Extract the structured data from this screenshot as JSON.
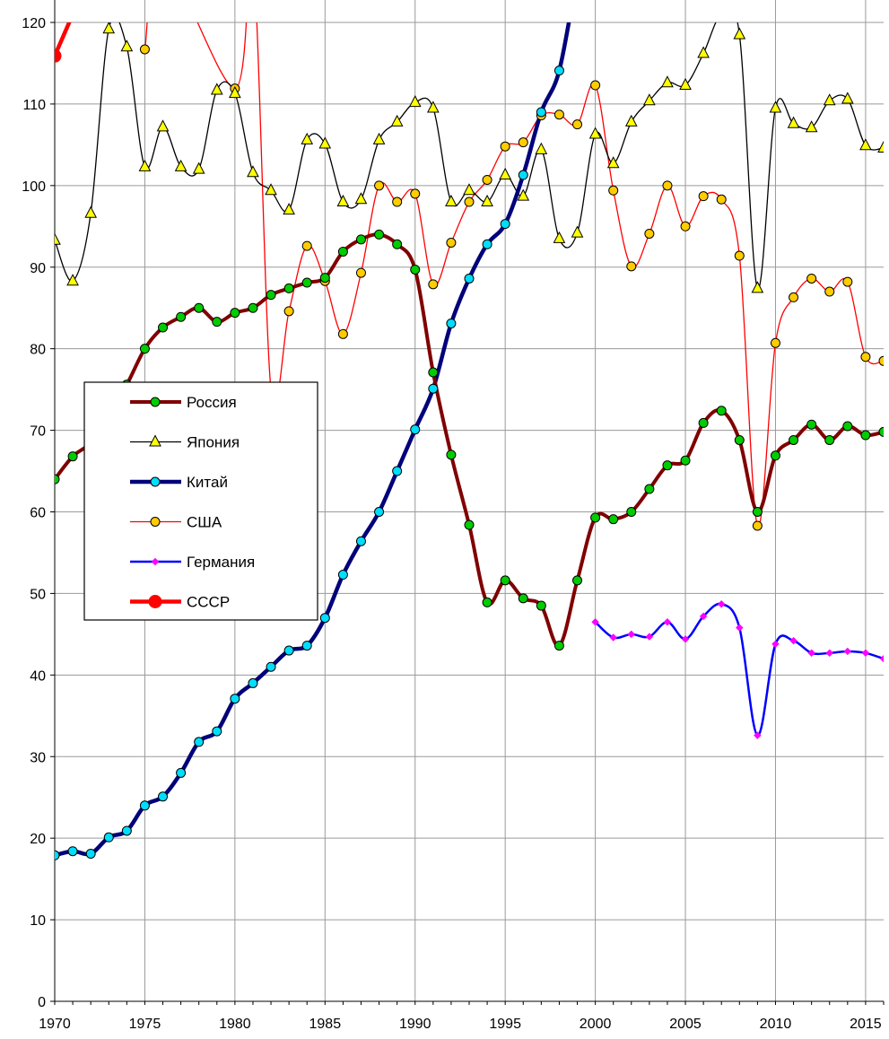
{
  "chart_data": {
    "type": "line",
    "title": "",
    "xlabel": "",
    "ylabel": "",
    "xlim": [
      1970,
      2016
    ],
    "ylim": [
      0,
      120
    ],
    "grid": true,
    "legend_position": "left-middle",
    "x_ticks": [
      "1970",
      "1975",
      "1980",
      "1985",
      "1990",
      "1995",
      "2000",
      "2005",
      "2010",
      "2015"
    ],
    "y_ticks": [
      "0",
      "10",
      "20",
      "30",
      "40",
      "50",
      "60",
      "70",
      "80",
      "90",
      "100",
      "110",
      "120"
    ],
    "series": [
      {
        "name": "Россия",
        "color": "#800000",
        "marker": "circle",
        "marker_fill": "#00cc00",
        "points": [
          [
            1970,
            64.0
          ],
          [
            1971,
            66.8
          ],
          [
            1972,
            68.5
          ],
          [
            1973,
            72.0
          ],
          [
            1974,
            75.6
          ],
          [
            1975,
            80.0
          ],
          [
            1976,
            82.6
          ],
          [
            1977,
            83.9
          ],
          [
            1978,
            85.0
          ],
          [
            1979,
            83.3
          ],
          [
            1980,
            84.4
          ],
          [
            1981,
            85.0
          ],
          [
            1982,
            86.6
          ],
          [
            1983,
            87.4
          ],
          [
            1984,
            88.1
          ],
          [
            1985,
            88.7
          ],
          [
            1986,
            91.9
          ],
          [
            1987,
            93.4
          ],
          [
            1988,
            94.0
          ],
          [
            1989,
            92.8
          ],
          [
            1990,
            89.7
          ],
          [
            1991,
            77.1
          ],
          [
            1992,
            67.0
          ],
          [
            1993,
            58.4
          ],
          [
            1994,
            48.9
          ],
          [
            1995,
            51.6
          ],
          [
            1996,
            49.4
          ],
          [
            1997,
            48.5
          ],
          [
            1998,
            43.6
          ],
          [
            1999,
            51.6
          ],
          [
            2000,
            59.3
          ],
          [
            2001,
            59.1
          ],
          [
            2002,
            60.0
          ],
          [
            2003,
            62.8
          ],
          [
            2004,
            65.7
          ],
          [
            2005,
            66.3
          ],
          [
            2006,
            70.9
          ],
          [
            2007,
            72.4
          ],
          [
            2008,
            68.8
          ],
          [
            2009,
            60.0
          ],
          [
            2010,
            66.9
          ],
          [
            2011,
            68.8
          ],
          [
            2012,
            70.7
          ],
          [
            2013,
            68.8
          ],
          [
            2014,
            70.5
          ],
          [
            2015,
            69.4
          ],
          [
            2016,
            69.8
          ]
        ]
      },
      {
        "name": "Япония",
        "color": "#000000",
        "marker": "triangle",
        "marker_fill": "#ffff00",
        "points": [
          [
            1970,
            93.3
          ],
          [
            1971,
            88.3
          ],
          [
            1972,
            96.6
          ],
          [
            1973,
            119.2
          ],
          [
            1974,
            117.0
          ],
          [
            1975,
            102.3
          ],
          [
            1976,
            107.2
          ],
          [
            1977,
            102.3
          ],
          [
            1978,
            102.0
          ],
          [
            1979,
            111.7
          ],
          [
            1980,
            111.3
          ],
          [
            1981,
            101.6
          ],
          [
            1982,
            99.4
          ],
          [
            1983,
            97.0
          ],
          [
            1984,
            105.6
          ],
          [
            1985,
            105.1
          ],
          [
            1986,
            98.0
          ],
          [
            1987,
            98.3
          ],
          [
            1988,
            105.6
          ],
          [
            1989,
            107.8
          ],
          [
            1990,
            110.2
          ],
          [
            1991,
            109.5
          ],
          [
            1992,
            98.0
          ],
          [
            1993,
            99.4
          ],
          [
            1994,
            98.0
          ],
          [
            1995,
            101.3
          ],
          [
            1996,
            98.7
          ],
          [
            1997,
            104.4
          ],
          [
            1998,
            93.5
          ],
          [
            1999,
            94.2
          ],
          [
            2000,
            106.3
          ],
          [
            2001,
            102.7
          ],
          [
            2002,
            107.8
          ],
          [
            2003,
            110.4
          ],
          [
            2004,
            112.6
          ],
          [
            2005,
            112.3
          ],
          [
            2006,
            116.2
          ],
          [
            2007,
            121.0
          ],
          [
            2008,
            118.5
          ],
          [
            2009,
            87.4
          ],
          [
            2010,
            109.5
          ],
          [
            2011,
            107.6
          ],
          [
            2012,
            107.1
          ],
          [
            2013,
            110.4
          ],
          [
            2014,
            110.6
          ],
          [
            2015,
            104.9
          ],
          [
            2016,
            104.6
          ]
        ]
      },
      {
        "name": "Китай",
        "color": "#00007a",
        "marker": "circle",
        "marker_fill": "#00ddff",
        "points": [
          [
            1970,
            17.9
          ],
          [
            1971,
            18.4
          ],
          [
            1972,
            18.1
          ],
          [
            1973,
            20.1
          ],
          [
            1974,
            20.9
          ],
          [
            1975,
            24.0
          ],
          [
            1976,
            25.1
          ],
          [
            1977,
            28.0
          ],
          [
            1978,
            31.8
          ],
          [
            1979,
            33.1
          ],
          [
            1980,
            37.1
          ],
          [
            1981,
            39.0
          ],
          [
            1982,
            41.0
          ],
          [
            1983,
            43.0
          ],
          [
            1984,
            43.6
          ],
          [
            1985,
            47.0
          ],
          [
            1986,
            52.3
          ],
          [
            1987,
            56.4
          ],
          [
            1988,
            60.0
          ],
          [
            1989,
            65.0
          ],
          [
            1990,
            70.1
          ],
          [
            1991,
            75.1
          ],
          [
            1992,
            83.1
          ],
          [
            1993,
            88.6
          ],
          [
            1994,
            92.8
          ],
          [
            1995,
            95.3
          ],
          [
            1996,
            101.3
          ],
          [
            1997,
            109.0
          ],
          [
            1998,
            114.1
          ],
          [
            1999,
            126.0
          ]
        ]
      },
      {
        "name": "США",
        "color": "#ff0000",
        "marker": "circle",
        "marker_fill": "#ffcc00",
        "points": [
          [
            1975,
            116.7
          ],
          [
            1976,
            128.0
          ],
          [
            1980,
            111.9
          ],
          [
            1981,
            128.0
          ],
          [
            1982,
            75.0
          ],
          [
            1983,
            84.6
          ],
          [
            1984,
            92.6
          ],
          [
            1985,
            88.3
          ],
          [
            1986,
            81.8
          ],
          [
            1987,
            89.3
          ],
          [
            1988,
            100.0
          ],
          [
            1989,
            98.0
          ],
          [
            1990,
            99.0
          ],
          [
            1991,
            87.9
          ],
          [
            1992,
            93.0
          ],
          [
            1993,
            98.0
          ],
          [
            1994,
            100.7
          ],
          [
            1995,
            104.8
          ],
          [
            1996,
            105.3
          ],
          [
            1997,
            108.6
          ],
          [
            1998,
            108.7
          ],
          [
            1999,
            107.5
          ],
          [
            2000,
            112.3
          ],
          [
            2001,
            99.4
          ],
          [
            2002,
            90.1
          ],
          [
            2003,
            94.1
          ],
          [
            2004,
            100.0
          ],
          [
            2005,
            95.0
          ],
          [
            2006,
            98.7
          ],
          [
            2007,
            98.3
          ],
          [
            2008,
            91.4
          ],
          [
            2009,
            58.3
          ],
          [
            2010,
            80.7
          ],
          [
            2011,
            86.3
          ],
          [
            2012,
            88.6
          ],
          [
            2013,
            87.0
          ],
          [
            2014,
            88.2
          ],
          [
            2015,
            79.0
          ],
          [
            2016,
            78.5
          ]
        ]
      },
      {
        "name": "Германия",
        "color": "#0000ff",
        "marker": "diamond",
        "marker_fill": "#ff00ff",
        "points": [
          [
            2000,
            46.5
          ],
          [
            2001,
            44.6
          ],
          [
            2002,
            45.0
          ],
          [
            2003,
            44.7
          ],
          [
            2004,
            46.5
          ],
          [
            2005,
            44.4
          ],
          [
            2006,
            47.2
          ],
          [
            2007,
            48.7
          ],
          [
            2008,
            45.8
          ],
          [
            2009,
            32.6
          ],
          [
            2010,
            43.8
          ],
          [
            2011,
            44.2
          ],
          [
            2012,
            42.7
          ],
          [
            2013,
            42.7
          ],
          [
            2014,
            42.9
          ],
          [
            2015,
            42.7
          ],
          [
            2016,
            42.0
          ]
        ]
      },
      {
        "name": "СССР",
        "color": "#ff0000",
        "marker": "circle",
        "marker_fill": "#ff0000",
        "points": [
          [
            1970,
            115.9
          ],
          [
            1971,
            121.0
          ]
        ]
      }
    ]
  }
}
